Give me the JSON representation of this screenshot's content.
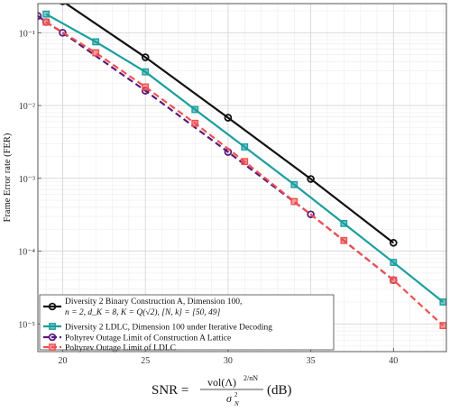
{
  "chart_data": {
    "type": "line",
    "xlabel_text": "SNR =",
    "xlabel_numerator": "vol(Λ)",
    "xlabel_numerator_exp": "2/nN",
    "xlabel_denominator": "σ",
    "xlabel_denominator_sup": "2",
    "xlabel_denominator_sub": "N",
    "xlabel_unit": "(dB)",
    "ylabel": "Frame Error rate (FER)",
    "xlim": [
      18.5,
      43.2
    ],
    "ylim_log10": [
      -5.38,
      -0.6
    ],
    "log_y": true,
    "grid": true,
    "legend_position": "bottom-left",
    "x_ticks": [
      20,
      25,
      30,
      35,
      40
    ],
    "x_tick_labels": [
      "20",
      "25",
      "30",
      "35",
      "40"
    ],
    "y_ticks": [
      1e-05,
      0.0001,
      0.001,
      0.01,
      0.1
    ],
    "y_tick_labels": [
      "10⁻⁵",
      "10⁻⁴",
      "10⁻³",
      "10⁻²",
      "10⁻¹"
    ],
    "series": [
      {
        "name": "Diversity 2 Binary Construction A, Dimension 100,",
        "name_line2": "n = 2, d_K = 8, K = Q(√2), [N, k] = [50, 49]",
        "color": "#111111",
        "marker": "circle",
        "dashed": false,
        "x": [
          19.4,
          20,
          25,
          30,
          35,
          40
        ],
        "y": [
          0.32,
          0.27,
          0.046,
          0.0068,
          0.00098,
          0.00013
        ]
      },
      {
        "name": "Diversity 2 LDLC, Dimension 100 under Iterative Decoding",
        "color": "#1a9e9e",
        "marker": "square",
        "dashed": false,
        "x": [
          19,
          22,
          25,
          28,
          31,
          34,
          37,
          40,
          43
        ],
        "y": [
          0.18,
          0.075,
          0.029,
          0.0088,
          0.0027,
          0.00082,
          0.00024,
          7e-05,
          2e-05
        ]
      },
      {
        "name": "Poltyrev Outage Limit of Construction A Lattice",
        "color": "#5a1a7a",
        "marker": "circle",
        "dashed": true,
        "x": [
          18.5,
          19,
          20,
          25,
          30,
          35,
          40
        ],
        "y": [
          0.17,
          0.14,
          0.1,
          0.016,
          0.0023,
          0.00032,
          4e-05
        ]
      },
      {
        "name": "Poltyrev Outage Limit of LDLC",
        "color": "#f05050",
        "marker": "square",
        "dashed": true,
        "x": [
          19,
          22,
          25,
          28,
          31,
          34,
          37,
          40,
          43
        ],
        "y": [
          0.14,
          0.053,
          0.018,
          0.0057,
          0.0017,
          0.00048,
          0.00014,
          4e-05,
          9.5e-06
        ]
      }
    ]
  }
}
